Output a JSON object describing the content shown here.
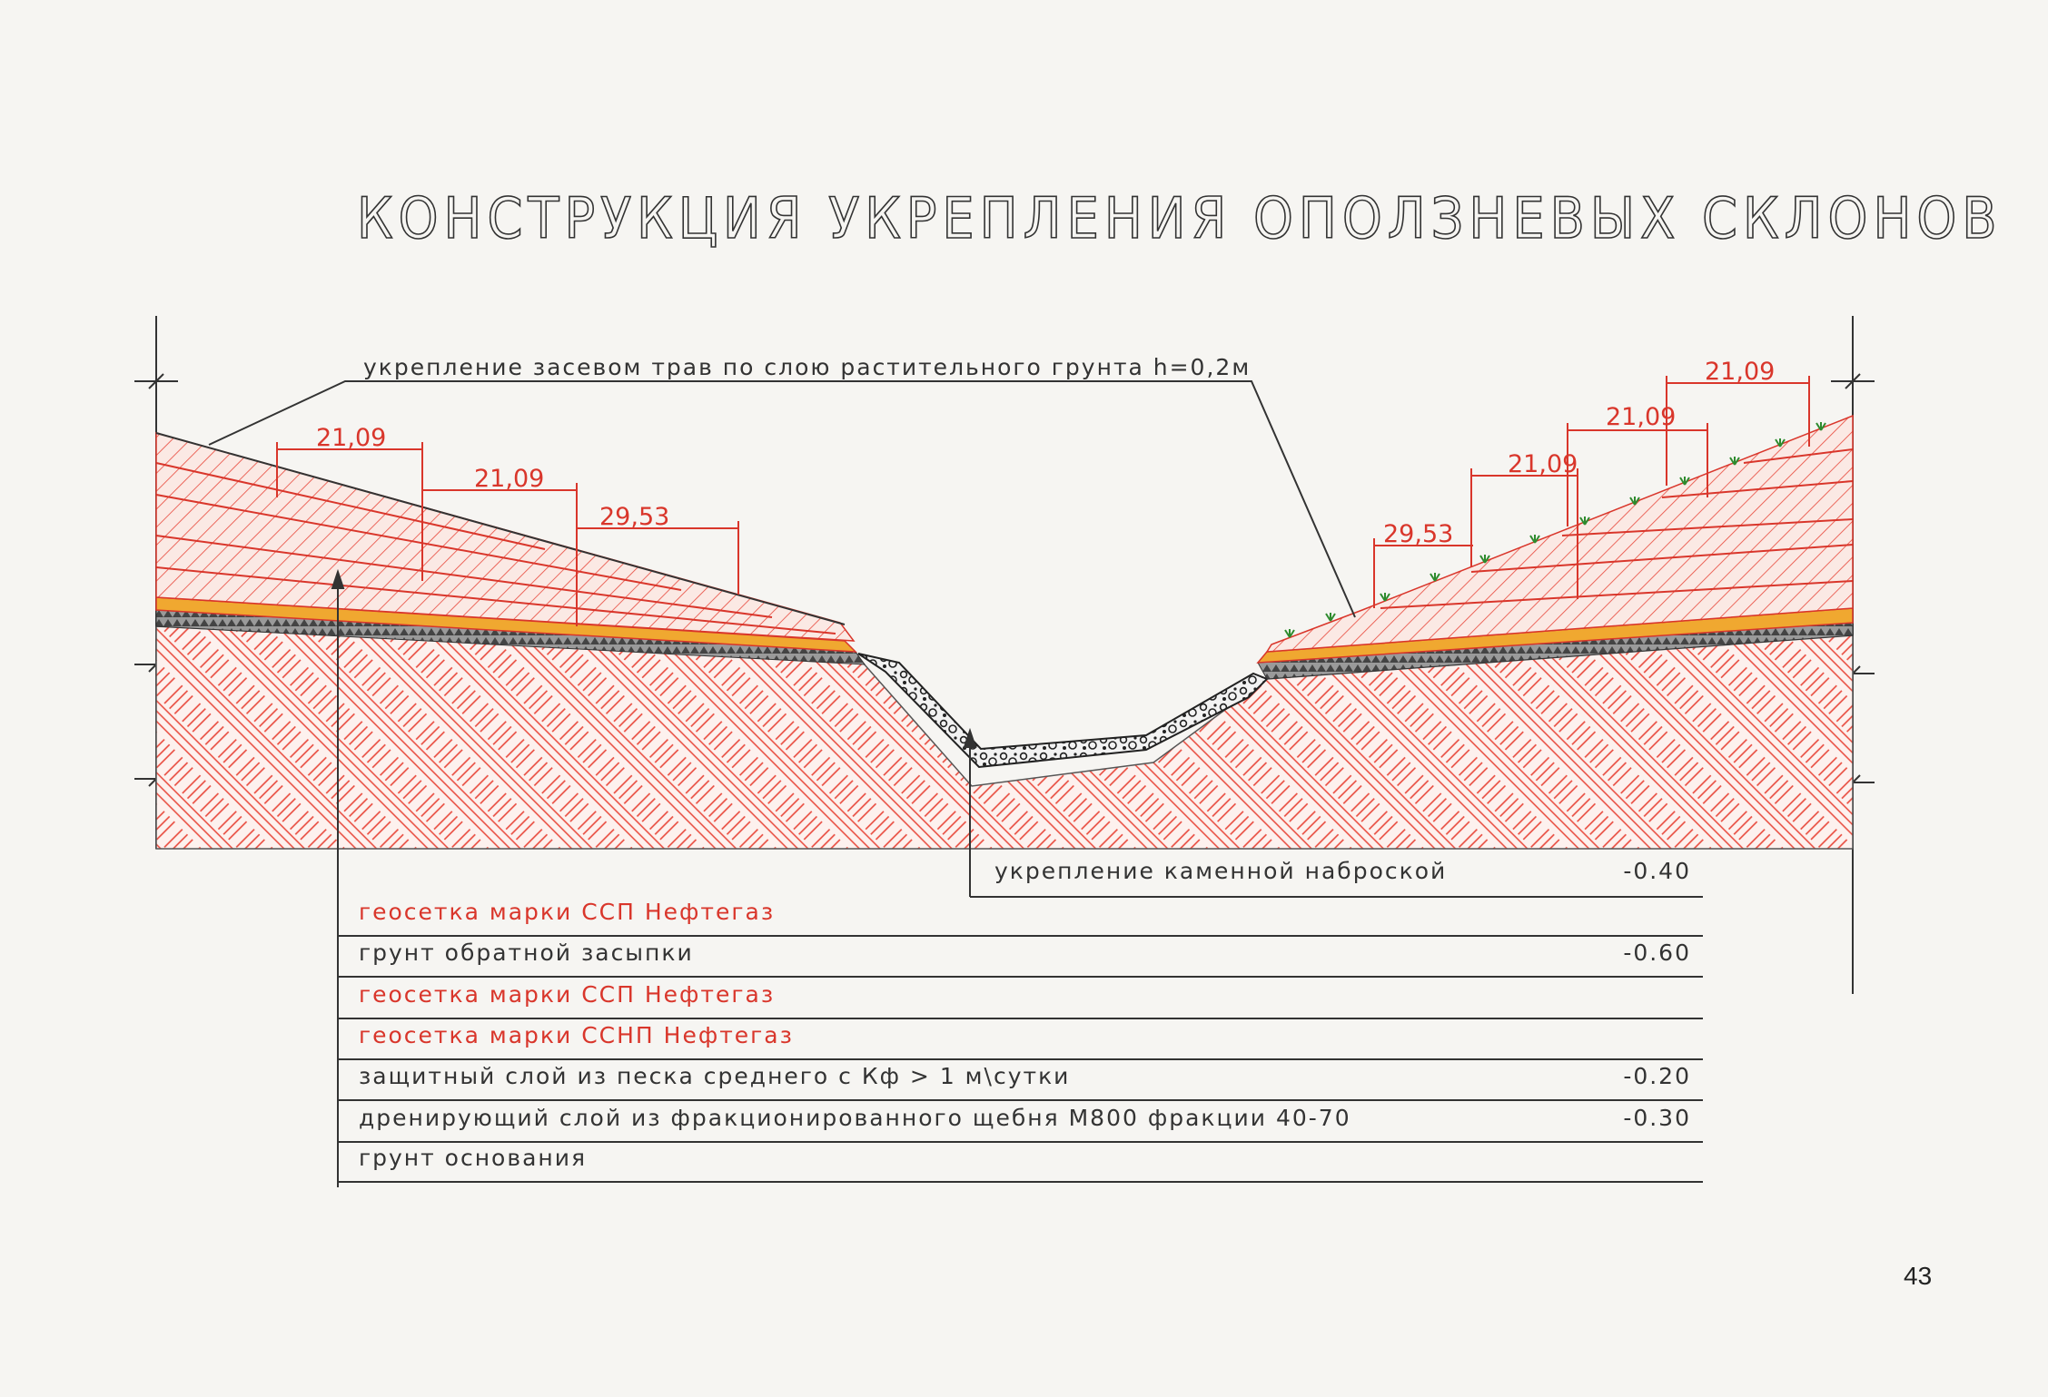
{
  "title": "КОНСТРУКЦИЯ УКРЕПЛЕНИЯ ОПОЛЗНЕВЫХ СКЛОНОВ",
  "top_callout": "укрепление засевом трав по слою растительного грунта h=0,2м",
  "left_dimensions": [
    "21,09",
    "21,09",
    "29,53"
  ],
  "right_dimensions": [
    "21,09",
    "21,09",
    "21,09",
    "29,53"
  ],
  "legend": [
    {
      "label": "укрепление каменной наброской",
      "value": "-0.40",
      "color": "#333333"
    },
    {
      "label": "геосетка марки ССП Нефтегаз",
      "value": "",
      "color": "#d9362b"
    },
    {
      "label": "грунт обратной засыпки",
      "value": "-0.60",
      "color": "#333333"
    },
    {
      "label": "геосетка марки ССП Нефтегаз",
      "value": "",
      "color": "#d9362b"
    },
    {
      "label": "геосетка марки ССНП Нефтегаз",
      "value": "",
      "color": "#d9362b"
    },
    {
      "label": "защитный слой из песка среднего с Кф > 1 м\\сутки",
      "value": "-0.20",
      "color": "#333333"
    },
    {
      "label": "дренирующий слой из фракционированного щебня М800 фракции 40-70",
      "value": "-0.30",
      "color": "#333333"
    },
    {
      "label": "грунт основания",
      "value": "",
      "color": "#333333"
    }
  ],
  "page_number": "43",
  "colors": {
    "hatch": "#e8473a",
    "sand": "#f0a830",
    "gravel": "#555555",
    "line": "#333333"
  }
}
